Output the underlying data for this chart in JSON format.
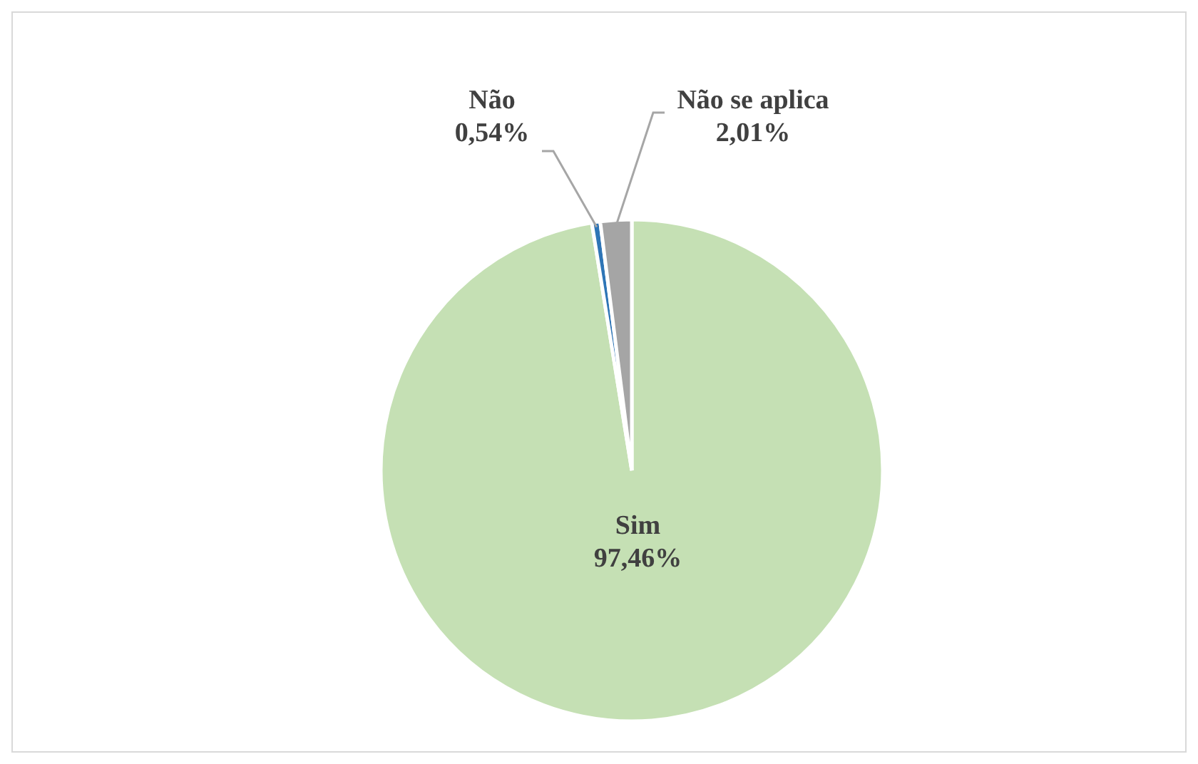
{
  "chart_data": {
    "type": "pie",
    "categories": [
      "Sim",
      "Não",
      "Não se aplica"
    ],
    "values": [
      97.46,
      0.54,
      2.01
    ],
    "colors": [
      "#c5e0b4",
      "#2e75b6",
      "#a5a5a5"
    ],
    "value_labels": [
      "97,46%",
      "0,54%",
      "2,01%"
    ]
  }
}
